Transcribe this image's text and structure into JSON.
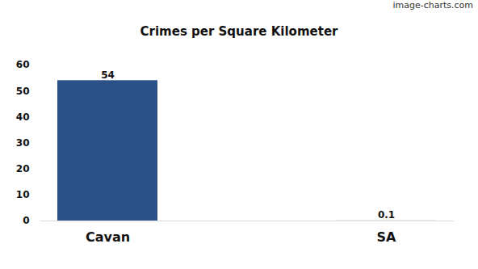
{
  "chart_data": {
    "type": "bar",
    "title": "Crimes per Square Kilometer",
    "annotations": [
      "image-charts.com"
    ],
    "categories": [
      "Cavan",
      "SA"
    ],
    "values": [
      54,
      0.1
    ],
    "colors": [
      "#2c5189",
      "#cfcfcf"
    ],
    "ylim": [
      0,
      60
    ],
    "yticks": [
      0,
      10,
      20,
      30,
      40,
      50,
      60
    ],
    "grid": false,
    "data_labels": true
  }
}
